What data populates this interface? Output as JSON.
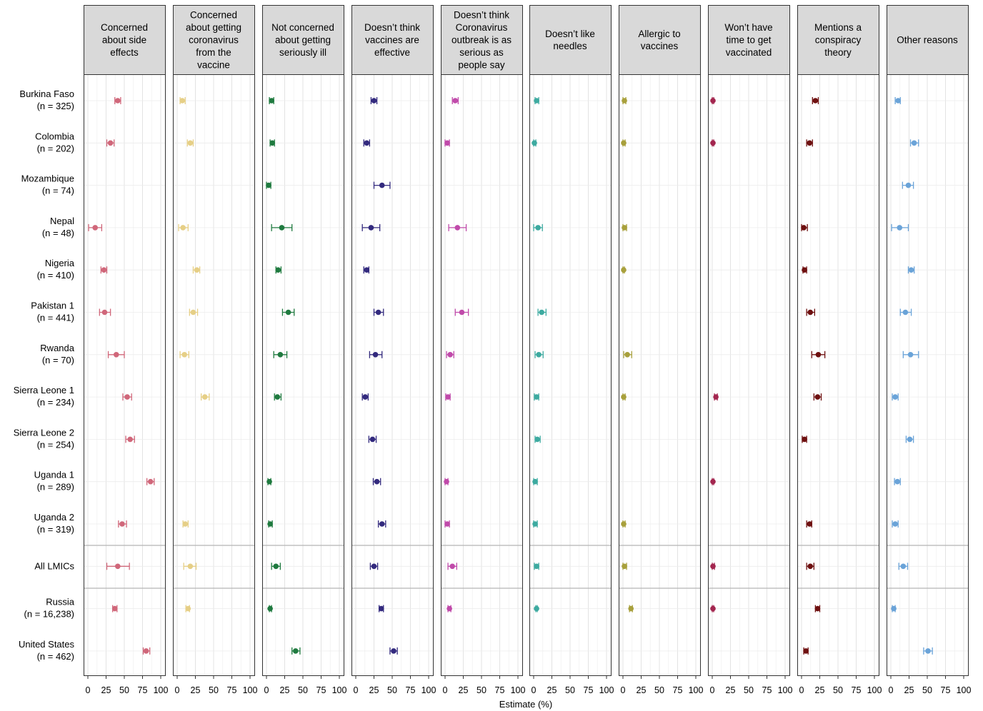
{
  "chart_data": {
    "type": "scatter",
    "subtype": "faceted dot plot with error bars",
    "xlabel": "Estimate (%)",
    "ylabel": "",
    "xlim": [
      0,
      100
    ],
    "x_ticks": [
      "0",
      "25",
      "50",
      "75",
      "100"
    ],
    "grid": true,
    "row_labels": [
      {
        "name": "Burkina Faso",
        "n": "(n = 325)"
      },
      {
        "name": "Colombia",
        "n": "(n = 202)"
      },
      {
        "name": "Mozambique",
        "n": "(n = 74)"
      },
      {
        "name": "Nepal",
        "n": "(n = 48)"
      },
      {
        "name": "Nigeria",
        "n": "(n = 410)"
      },
      {
        "name": "Pakistan 1",
        "n": "(n = 441)"
      },
      {
        "name": "Rwanda",
        "n": "(n = 70)"
      },
      {
        "name": "Sierra Leone 1",
        "n": "(n = 234)"
      },
      {
        "name": "Sierra Leone 2",
        "n": "(n = 254)"
      },
      {
        "name": "Uganda 1",
        "n": "(n = 289)"
      },
      {
        "name": "Uganda 2",
        "n": "(n = 319)"
      },
      {
        "name": "All LMICs",
        "n": ""
      },
      {
        "name": "Russia",
        "n": "(n = 16,238)"
      },
      {
        "name": "United States",
        "n": "(n = 462)"
      }
    ],
    "panels": [
      {
        "title_lines": [
          "Concerned",
          "about side",
          "effects"
        ],
        "color": "#d0677a",
        "points": [
          [
            41,
            37,
            45
          ],
          [
            31,
            26,
            36
          ],
          null,
          [
            10,
            1,
            19
          ],
          [
            22,
            18,
            26
          ],
          [
            23,
            16,
            31
          ],
          [
            39,
            28,
            50
          ],
          [
            54,
            48,
            60
          ],
          [
            58,
            52,
            64
          ],
          [
            86,
            81,
            91
          ],
          [
            47,
            42,
            53
          ],
          [
            41,
            26,
            57
          ],
          [
            37,
            34,
            40
          ],
          [
            80,
            76,
            85
          ]
        ]
      },
      {
        "title_lines": [
          "Concerned",
          "about getting",
          "coronavirus",
          "from the",
          "vaccine"
        ],
        "color": "#e6cf86",
        "points": [
          [
            7,
            4,
            11
          ],
          [
            18,
            14,
            22
          ],
          null,
          [
            8,
            2,
            15
          ],
          [
            27,
            22,
            31
          ],
          [
            22,
            17,
            28
          ],
          [
            10,
            4,
            16
          ],
          [
            38,
            33,
            44
          ],
          null,
          null,
          [
            11,
            8,
            15
          ],
          [
            18,
            9,
            26
          ],
          [
            15,
            12,
            17
          ],
          null
        ]
      },
      {
        "title_lines": [
          "Not concerned",
          "about getting",
          "seriously ill"
        ],
        "color": "#1f7a3f",
        "points": [
          [
            7,
            4,
            10
          ],
          [
            8,
            5,
            11
          ],
          [
            3,
            0,
            6
          ],
          [
            21,
            7,
            35
          ],
          [
            16,
            13,
            20
          ],
          [
            30,
            22,
            38
          ],
          [
            19,
            10,
            28
          ],
          [
            15,
            11,
            20
          ],
          null,
          [
            4,
            2,
            6
          ],
          [
            5,
            3,
            8
          ],
          [
            13,
            7,
            19
          ],
          [
            5,
            4,
            7
          ],
          [
            40,
            35,
            46
          ]
        ]
      },
      {
        "title_lines": [
          "Doesn’t think",
          "vaccines are",
          "effective"
        ],
        "color": "#332a7e",
        "points": [
          [
            25,
            21,
            29
          ],
          [
            15,
            11,
            19
          ],
          [
            36,
            25,
            47
          ],
          [
            21,
            9,
            33
          ],
          [
            15,
            11,
            18
          ],
          [
            31,
            25,
            38
          ],
          [
            27,
            19,
            36
          ],
          [
            13,
            9,
            17
          ],
          [
            23,
            18,
            28
          ],
          [
            29,
            24,
            34
          ],
          [
            36,
            31,
            41
          ],
          [
            25,
            20,
            30
          ],
          [
            35,
            32,
            38
          ],
          [
            52,
            47,
            57
          ]
        ]
      },
      {
        "title_lines": [
          "Doesn’t think",
          "Coronavirus",
          "outbreak is as",
          "serious as",
          "people say"
        ],
        "color": "#c04aaa",
        "points": [
          [
            14,
            10,
            18
          ],
          [
            3,
            0,
            6
          ],
          null,
          [
            17,
            5,
            29
          ],
          null,
          [
            23,
            14,
            32
          ],
          [
            7,
            2,
            12
          ],
          [
            4,
            1,
            7
          ],
          null,
          [
            2,
            0,
            4
          ],
          [
            3,
            0,
            6
          ],
          [
            10,
            4,
            16
          ],
          [
            6,
            4,
            8
          ],
          null
        ]
      },
      {
        "title_lines": [
          "Doesn’t like",
          "needles"
        ],
        "color": "#3daaa0",
        "points": [
          [
            4,
            2,
            7
          ],
          [
            1,
            0,
            3
          ],
          null,
          [
            6,
            0,
            12
          ],
          null,
          [
            11,
            6,
            17
          ],
          [
            7,
            2,
            13
          ],
          [
            4,
            1,
            7
          ],
          [
            5,
            2,
            9
          ],
          [
            2,
            0,
            5
          ],
          [
            2,
            0,
            5
          ],
          [
            4,
            1,
            7
          ],
          [
            4,
            3,
            5
          ],
          null
        ]
      },
      {
        "title_lines": [
          "Allergic to",
          "vaccines"
        ],
        "color": "#a8a03c",
        "points": [
          [
            2,
            0,
            4
          ],
          [
            1,
            0,
            3
          ],
          null,
          [
            2,
            0,
            5
          ],
          [
            1,
            0,
            2
          ],
          null,
          [
            6,
            1,
            12
          ],
          [
            1,
            0,
            3
          ],
          null,
          null,
          [
            1,
            0,
            3
          ],
          [
            2,
            0,
            5
          ],
          [
            11,
            9,
            13
          ],
          null
        ]
      },
      {
        "title_lines": [
          "Won’t have",
          "time to get",
          "vaccinated"
        ],
        "color": "#a3264f",
        "points": [
          [
            1,
            0,
            2
          ],
          [
            1,
            0,
            2
          ],
          null,
          null,
          null,
          null,
          null,
          [
            5,
            3,
            7
          ],
          null,
          [
            1,
            0,
            2
          ],
          null,
          [
            1,
            0,
            3
          ],
          [
            1,
            0,
            2
          ],
          null
        ]
      },
      {
        "title_lines": [
          "Mentions a",
          "conspiracy",
          "theory"
        ],
        "color": "#6e1010",
        "points": [
          [
            19,
            15,
            23
          ],
          [
            11,
            7,
            15
          ],
          null,
          [
            3,
            0,
            8
          ],
          [
            4,
            2,
            7
          ],
          [
            12,
            7,
            18
          ],
          [
            23,
            14,
            32
          ],
          [
            22,
            17,
            27
          ],
          [
            4,
            1,
            7
          ],
          null,
          [
            11,
            7,
            14
          ],
          [
            12,
            7,
            17
          ],
          [
            22,
            19,
            25
          ],
          [
            6,
            3,
            9
          ]
        ]
      },
      {
        "title_lines": [
          "Other reasons"
        ],
        "color": "#6aa3d8",
        "points": [
          [
            10,
            6,
            13
          ],
          [
            32,
            27,
            38
          ],
          [
            24,
            16,
            31
          ],
          [
            12,
            1,
            24
          ],
          [
            28,
            24,
            32
          ],
          [
            20,
            13,
            28
          ],
          [
            27,
            17,
            38
          ],
          [
            6,
            2,
            10
          ],
          [
            26,
            21,
            31
          ],
          [
            9,
            5,
            13
          ],
          [
            6,
            2,
            10
          ],
          [
            17,
            11,
            23
          ],
          [
            4,
            2,
            6
          ],
          [
            51,
            45,
            57
          ]
        ]
      }
    ]
  }
}
